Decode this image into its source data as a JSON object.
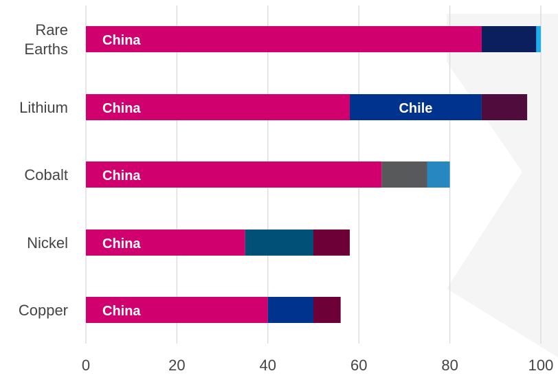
{
  "chart_data": {
    "type": "bar",
    "orientation": "horizontal",
    "stacked": true,
    "categories": [
      "Rare Earths",
      "Lithium",
      "Cobalt",
      "Nickel",
      "Copper"
    ],
    "category_lines": [
      [
        "Rare",
        "Earths"
      ],
      [
        "Lithium"
      ],
      [
        "Cobalt"
      ],
      [
        "Nickel"
      ],
      [
        "Copper"
      ]
    ],
    "xlim": [
      0,
      100
    ],
    "xticks": [
      0,
      20,
      40,
      60,
      80,
      100
    ],
    "grid": "vertical",
    "legend": "none",
    "background_watermark": "light grey play-button triangle on right",
    "bars": [
      {
        "category": "Rare Earths",
        "segments": [
          {
            "value": 87,
            "color": "#d0006f",
            "label": "China"
          },
          {
            "value": 12,
            "color": "#0a1f5c",
            "label": ""
          },
          {
            "value": 1,
            "color": "#19aef0",
            "label": ""
          }
        ]
      },
      {
        "category": "Lithium",
        "segments": [
          {
            "value": 58,
            "color": "#d0006f",
            "label": "China"
          },
          {
            "value": 29,
            "color": "#00338d",
            "label": "Chile"
          },
          {
            "value": 10,
            "color": "#510c3e",
            "label": ""
          }
        ]
      },
      {
        "category": "Cobalt",
        "segments": [
          {
            "value": 65,
            "color": "#d0006f",
            "label": "China"
          },
          {
            "value": 10,
            "color": "#58595b",
            "label": ""
          },
          {
            "value": 5,
            "color": "#2787c0",
            "label": ""
          }
        ]
      },
      {
        "category": "Nickel",
        "segments": [
          {
            "value": 35,
            "color": "#d0006f",
            "label": "China"
          },
          {
            "value": 15,
            "color": "#005078",
            "label": ""
          },
          {
            "value": 8,
            "color": "#6c0037",
            "label": ""
          }
        ]
      },
      {
        "category": "Copper",
        "segments": [
          {
            "value": 40,
            "color": "#d0006f",
            "label": "China"
          },
          {
            "value": 10,
            "color": "#00338d",
            "label": ""
          },
          {
            "value": 6,
            "color": "#6c0037",
            "label": ""
          }
        ]
      }
    ]
  }
}
